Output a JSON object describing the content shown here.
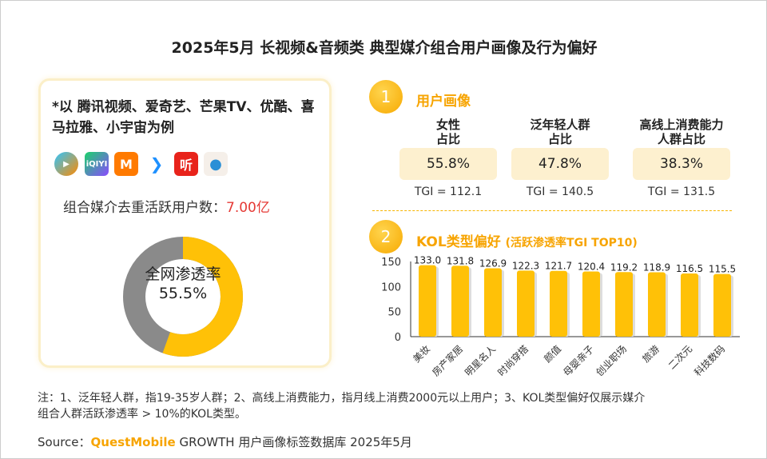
{
  "title": "2025年5月 长视频&音频类 典型媒介组合用户画像及行为偏好",
  "left": {
    "note": "*以 腾讯视频、爱奇艺、芒果TV、优酷、喜马拉雅、小宇宙为例",
    "apps": [
      "tencent-video-icon",
      "iqiyi-icon",
      "mango-tv-icon",
      "youku-icon",
      "ximalaya-icon",
      "xiaoyuzhou-icon"
    ],
    "iqiyi_text": "iQIYI",
    "ximalaya_text": "听",
    "users_label": "组合媒介去重活跃用户数：",
    "users_value": "7.00亿",
    "donut": {
      "label": "全网渗透率",
      "value_text": "55.5%",
      "value": 55.5,
      "colors": {
        "fill": "#ffc107",
        "rest": "#8a8a8a"
      }
    }
  },
  "section1": {
    "num": "1",
    "title": "用户画像",
    "metrics": [
      {
        "h1": "女性",
        "h2": "占比",
        "value": "55.8%",
        "tgi": "TGI = 112.1"
      },
      {
        "h1": "泛年轻人群",
        "h2": "占比",
        "value": "47.8%",
        "tgi": "TGI = 140.5"
      },
      {
        "h1": "高线上消费能力",
        "h2": "人群占比",
        "value": "38.3%",
        "tgi": "TGI = 131.5"
      }
    ]
  },
  "section2": {
    "num": "2",
    "title": "KOL类型偏好",
    "subtitle": "(活跃渗透率TGI TOP10)"
  },
  "chart_data": {
    "type": "bar",
    "categories": [
      "美妆",
      "房产家居",
      "明星名人",
      "时尚穿搭",
      "颜值",
      "母婴亲子",
      "创业职场",
      "旅游",
      "二次元",
      "科技数码"
    ],
    "values": [
      133.0,
      131.8,
      126.9,
      122.3,
      121.7,
      120.4,
      119.2,
      118.9,
      116.5,
      115.5
    ],
    "labels": [
      "133.0",
      "131.8",
      "126.9",
      "122.3",
      "121.7",
      "120.4",
      "119.2",
      "118.9",
      "116.5",
      "115.5"
    ],
    "ylim": [
      0,
      150
    ],
    "yticks": [
      "0",
      "50",
      "100",
      "150"
    ],
    "color": "#ffc107"
  },
  "footer": {
    "note1": "注：1、泛年轻人群，指19-35岁人群；2、高线上消费能力，指月线上消费2000元以上用户；3、KOL类型偏好仅展示媒介",
    "note2": "组合人群活跃渗透率 > 10%的KOL类型。",
    "source_label": "Source：",
    "source_brand": "QuestMobile",
    "source_text": " GROWTH 用户画像标签数据库 2025年5月"
  }
}
